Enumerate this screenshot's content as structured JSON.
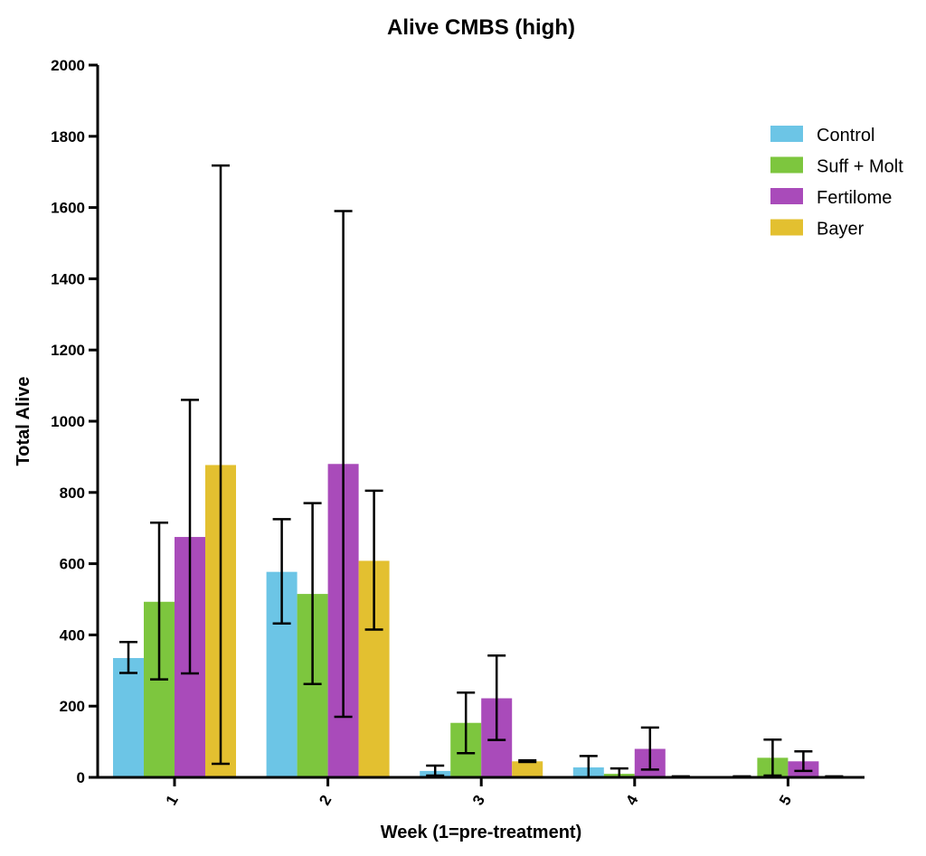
{
  "chart_data": {
    "type": "bar",
    "title": "Alive CMBS (high)",
    "xlabel": "Week (1=pre-treatment)",
    "ylabel": "Total Alive",
    "ylim": [
      0,
      2000
    ],
    "yticks": [
      "0",
      "200",
      "400",
      "600",
      "800",
      "1000",
      "1200",
      "1400",
      "1600",
      "1800",
      "2000"
    ],
    "categories": [
      "1",
      "2",
      "3",
      "4",
      "5"
    ],
    "legend_position": "top-right",
    "grid": false,
    "series": [
      {
        "name": "Control",
        "color": "#6CC5E6",
        "values": [
          335,
          577,
          18,
          28,
          2
        ],
        "error_low": [
          293,
          432,
          5,
          0,
          0
        ],
        "error_high": [
          380,
          725,
          33,
          60,
          3
        ]
      },
      {
        "name": "Suff + Molt",
        "color": "#7DC63E",
        "values": [
          493,
          515,
          153,
          10,
          55
        ],
        "error_low": [
          275,
          262,
          68,
          0,
          5
        ],
        "error_high": [
          715,
          770,
          238,
          25,
          106
        ]
      },
      {
        "name": "Fertilome",
        "color": "#A94BBA",
        "values": [
          675,
          880,
          222,
          80,
          45
        ],
        "error_low": [
          292,
          170,
          105,
          22,
          18
        ],
        "error_high": [
          1060,
          1590,
          342,
          140,
          73
        ]
      },
      {
        "name": "Bayer",
        "color": "#E3C030",
        "values": [
          877,
          608,
          45,
          2,
          2
        ],
        "error_low": [
          38,
          415,
          43,
          1,
          1
        ],
        "error_high": [
          1718,
          805,
          48,
          3,
          3
        ]
      }
    ]
  }
}
